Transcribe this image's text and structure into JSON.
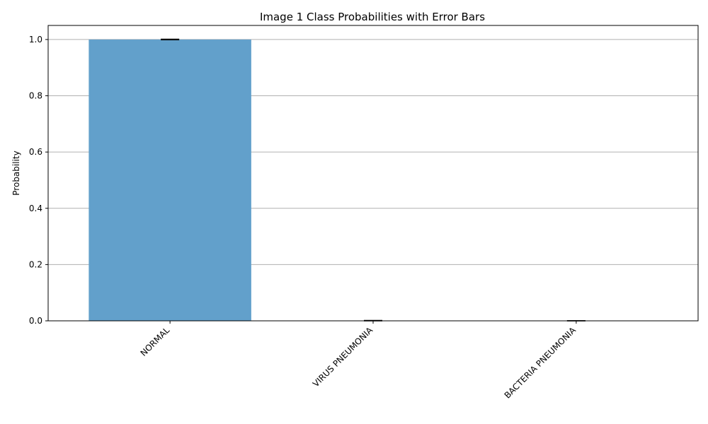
{
  "chart_data": {
    "type": "bar",
    "title": "Image 1 Class Probabilities with Error Bars",
    "xlabel": "",
    "ylabel": "Probability",
    "categories": [
      "NORMAL",
      "VIRUS PNEUMONIA",
      "BACTERIA PNEUMONIA"
    ],
    "values": [
      1.0,
      0.0004,
      0.0001
    ],
    "errors": [
      0.001,
      0.001,
      0.0002
    ],
    "ylim": [
      0,
      1.05
    ],
    "yticks": [
      0.0,
      0.2,
      0.4,
      0.6,
      0.8,
      1.0
    ],
    "ytick_labels": [
      "0.0",
      "0.2",
      "0.4",
      "0.6",
      "0.8",
      "1.0"
    ],
    "grid": "y",
    "legend": "none",
    "colors": {
      "bar": "#62a0cb",
      "grid": "#b0b0b0",
      "axis": "#000000",
      "errorbar": "#000000"
    }
  }
}
